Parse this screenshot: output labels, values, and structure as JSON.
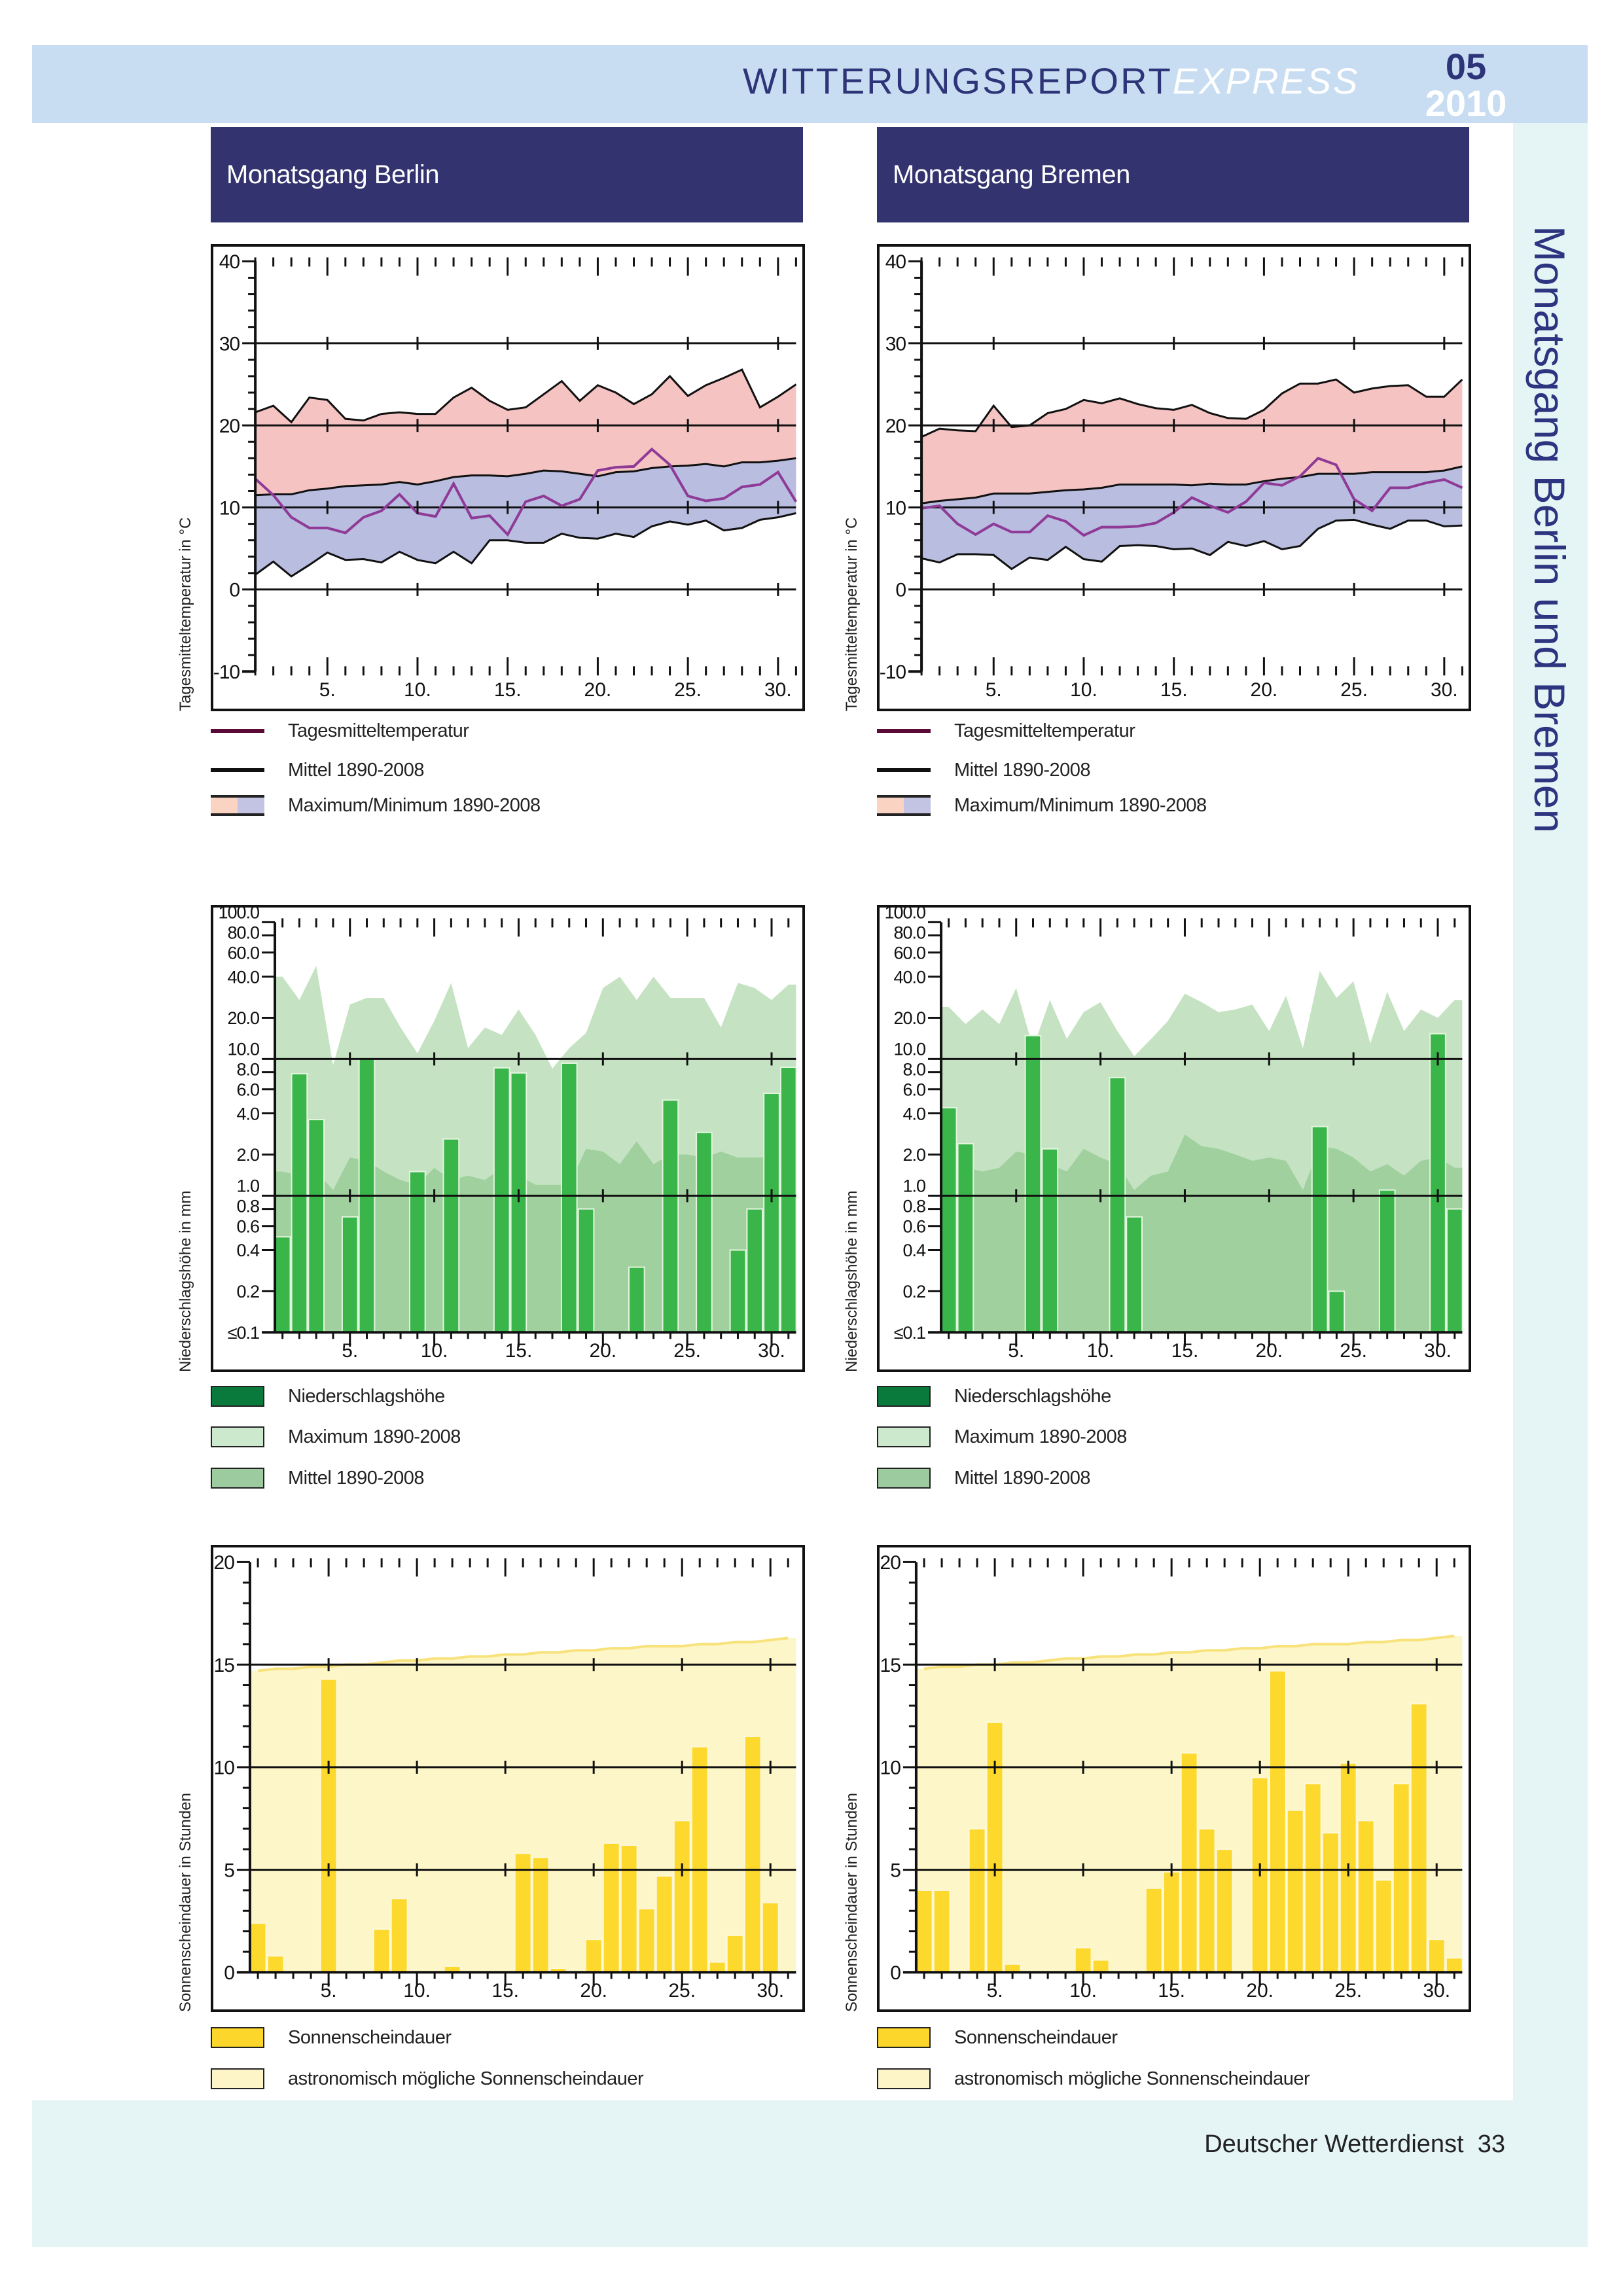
{
  "header": {
    "title_main": "WITTERUNGSREPORT",
    "title_accent": "EXPRESS",
    "issue_month": "05",
    "issue_year": "2010"
  },
  "side_title": "Monatsgang Berlin und Bremen",
  "footer": {
    "publisher": "Deutscher Wetterdienst",
    "page_number": "33"
  },
  "columns": [
    {
      "title": "Monatsgang Berlin"
    },
    {
      "title": "Monatsgang Bremen"
    }
  ],
  "colors": {
    "title_box": "#33336f",
    "header_band": "#c8ddf2",
    "side_band": "#e5f4f5",
    "temp_daily": "#8e3a96",
    "temp_daily_legend": "#5a0a35",
    "temp_max_band": "#f6c3c3",
    "temp_min_band": "#b9bde0",
    "precip_bar": "#39b54a",
    "precip_bar_legend": "#0a7a3c",
    "precip_max": "#c5e3c3",
    "precip_mean": "#9fd09e",
    "sun_bar": "#fcd92c",
    "sun_astro": "#fdf6c8"
  },
  "legends": {
    "temperature": [
      {
        "label": "Tagesmitteltemperatur"
      },
      {
        "label": "Mittel 1890-2008"
      },
      {
        "label": "Maximum/Minimum 1890-2008"
      }
    ],
    "precipitation": [
      {
        "label": "Niederschlagshöhe"
      },
      {
        "label": "Maximum 1890-2008"
      },
      {
        "label": "Mittel 1890-2008"
      }
    ],
    "sunshine": [
      {
        "label": "Sonnenscheindauer"
      },
      {
        "label": "astronomisch mögliche Sonnenscheindauer"
      }
    ]
  },
  "chart_data": [
    {
      "type": "line",
      "station": "Berlin",
      "ylabel": "Tagesmitteltemperatur in °C",
      "xlim": [
        1,
        31
      ],
      "xtick_labels": [
        "5.",
        "10.",
        "15.",
        "20.",
        "25.",
        "30."
      ],
      "ylim": [
        -10,
        40
      ],
      "yticks": [
        -10,
        0,
        10,
        20,
        30,
        40
      ],
      "ytick_labels": [
        "-10",
        "0",
        "10",
        "20",
        "30",
        "40"
      ],
      "grid": [
        0,
        10,
        20,
        30
      ],
      "series": [
        {
          "name": "Tagesmitteltemperatur",
          "values": [
            13.5,
            11.5,
            8.8,
            7.5,
            7.5,
            6.9,
            8.8,
            9.6,
            11.6,
            9.3,
            8.9,
            12.9,
            8.7,
            9.0,
            6.7,
            10.7,
            11.4,
            10.2,
            11.0,
            14.5,
            14.9,
            15.0,
            17.1,
            15.2,
            11.4,
            10.8,
            11.1,
            12.5,
            12.8,
            14.3,
            10.7
          ]
        },
        {
          "name": "Mittel 1890-2008",
          "values": [
            11.5,
            11.6,
            11.6,
            12.1,
            12.3,
            12.6,
            12.7,
            12.8,
            13.1,
            12.8,
            13.2,
            13.7,
            13.9,
            13.9,
            13.8,
            14.1,
            14.5,
            14.4,
            14.1,
            13.8,
            14.3,
            14.4,
            14.8,
            15.0,
            15.1,
            15.3,
            15.0,
            15.5,
            15.5,
            15.7,
            16.0
          ]
        }
      ],
      "band": {
        "name": "Maximum/Minimum 1890-2008",
        "upper": [
          21.6,
          22.4,
          20.4,
          23.4,
          23.1,
          20.8,
          20.6,
          21.4,
          21.6,
          21.4,
          21.4,
          23.4,
          24.6,
          23.0,
          21.9,
          22.2,
          23.8,
          25.4,
          23.0,
          24.9,
          24.0,
          22.6,
          23.8,
          26.0,
          23.6,
          24.9,
          25.8,
          26.8,
          22.2,
          23.5,
          25.0
        ],
        "lower": [
          1.8,
          3.4,
          1.6,
          3.0,
          4.5,
          3.6,
          3.7,
          3.3,
          4.6,
          3.6,
          3.2,
          4.6,
          3.2,
          6.0,
          6.0,
          5.7,
          5.7,
          6.8,
          6.3,
          6.2,
          6.8,
          6.4,
          7.7,
          8.3,
          7.9,
          8.4,
          7.2,
          7.5,
          8.5,
          8.8,
          9.3
        ]
      }
    },
    {
      "type": "line",
      "station": "Bremen",
      "ylabel": "Tagesmitteltemperatur in °C",
      "xlim": [
        1,
        31
      ],
      "xtick_labels": [
        "5.",
        "10.",
        "15.",
        "20.",
        "25.",
        "30."
      ],
      "ylim": [
        -10,
        40
      ],
      "yticks": [
        -10,
        0,
        10,
        20,
        30,
        40
      ],
      "ytick_labels": [
        "-10",
        "0",
        "10",
        "20",
        "30",
        "40"
      ],
      "grid": [
        0,
        10,
        20,
        30
      ],
      "series": [
        {
          "name": "Tagesmitteltemperatur",
          "values": [
            9.9,
            10.2,
            8.0,
            6.7,
            8.0,
            7.0,
            7.0,
            9.0,
            8.3,
            6.6,
            7.6,
            7.6,
            7.7,
            8.1,
            9.4,
            11.2,
            10.2,
            9.4,
            10.7,
            13.0,
            12.7,
            13.8,
            16.0,
            15.2,
            11.0,
            9.6,
            12.4,
            12.4,
            13.0,
            13.4,
            12.4
          ]
        },
        {
          "name": "Mittel 1890-2008",
          "values": [
            10.5,
            10.8,
            11.0,
            11.2,
            11.7,
            11.7,
            11.7,
            11.9,
            12.1,
            12.2,
            12.4,
            12.8,
            12.8,
            12.8,
            12.8,
            12.7,
            12.9,
            12.8,
            12.8,
            13.2,
            13.5,
            13.7,
            14.1,
            14.1,
            14.1,
            14.3,
            14.3,
            14.3,
            14.3,
            14.5,
            15.0
          ]
        }
      ],
      "band": {
        "name": "Maximum/Minimum 1890-2008",
        "upper": [
          18.6,
          19.6,
          19.4,
          19.3,
          22.4,
          19.8,
          20.0,
          21.5,
          22.0,
          23.1,
          22.7,
          23.3,
          22.6,
          22.1,
          21.9,
          22.5,
          21.5,
          20.9,
          20.8,
          21.9,
          23.9,
          25.1,
          25.1,
          25.6,
          24.0,
          24.5,
          24.8,
          24.9,
          23.5,
          23.5,
          25.6
        ],
        "lower": [
          3.8,
          3.3,
          4.3,
          4.3,
          4.2,
          2.5,
          3.9,
          3.6,
          5.2,
          3.7,
          3.4,
          5.3,
          5.4,
          5.3,
          4.9,
          5.0,
          4.2,
          5.8,
          5.3,
          5.9,
          4.9,
          5.3,
          7.4,
          8.4,
          8.5,
          7.9,
          7.4,
          8.4,
          8.4,
          7.7,
          7.8
        ]
      }
    },
    {
      "type": "bar",
      "station": "Berlin",
      "ylabel": "Niederschlagshöhe in mm",
      "scale": "log",
      "xlim": [
        1,
        31
      ],
      "xtick_labels": [
        "5.",
        "10.",
        "15.",
        "20.",
        "25.",
        "30."
      ],
      "ylim": [
        0.1,
        100
      ],
      "yticks": [
        0.1,
        0.2,
        0.4,
        0.6,
        0.8,
        1,
        2,
        4,
        6,
        8,
        10,
        20,
        40,
        60,
        80,
        100
      ],
      "ytick_labels": [
        "≤0.1",
        "0.2",
        "0.4",
        "0.6",
        "0.8",
        "1.0",
        "2.0",
        "4.0",
        "6.0",
        "8.0",
        "10.0",
        "20.0",
        "40.0",
        "60.0",
        "80.0",
        "100.0"
      ],
      "grid": [
        1,
        10
      ],
      "series": [
        {
          "name": "Niederschlagshöhe",
          "values": [
            0.5,
            7.8,
            3.6,
            0,
            0.7,
            10.0,
            0,
            0,
            1.5,
            0,
            2.6,
            0,
            0,
            8.6,
            7.9,
            0,
            0,
            9.3,
            0.8,
            0,
            0,
            0.3,
            0,
            5.0,
            0,
            2.9,
            0,
            0.4,
            0.8,
            5.6,
            8.7
          ]
        },
        {
          "name": "Maximum 1890-2008",
          "values": [
            40,
            27,
            48,
            9,
            25,
            28,
            28,
            17,
            11,
            19,
            36,
            12,
            17,
            15,
            23,
            15,
            8.5,
            12,
            15.5,
            33,
            40,
            27,
            40,
            28,
            28,
            28,
            17,
            36,
            33,
            27,
            35
          ]
        },
        {
          "name": "Mittel 1890-2008",
          "values": [
            1.5,
            1.4,
            1.5,
            1.1,
            1.9,
            1.8,
            1.5,
            1.3,
            1.2,
            1.6,
            1.3,
            1.4,
            1.3,
            1.6,
            1.4,
            1.2,
            1.2,
            1.2,
            2.2,
            2.1,
            1.7,
            2.5,
            1.7,
            2.0,
            2.0,
            1.9,
            2.1,
            1.9,
            1.9,
            1.9,
            1.3
          ]
        }
      ]
    },
    {
      "type": "bar",
      "station": "Bremen",
      "ylabel": "Niederschlagshöhe in mm",
      "scale": "log",
      "xlim": [
        1,
        31
      ],
      "xtick_labels": [
        "5.",
        "10.",
        "15.",
        "20.",
        "25.",
        "30."
      ],
      "ylim": [
        0.1,
        100
      ],
      "yticks": [
        0.1,
        0.2,
        0.4,
        0.6,
        0.8,
        1,
        2,
        4,
        6,
        8,
        10,
        20,
        40,
        60,
        80,
        100
      ],
      "ytick_labels": [
        "≤0.1",
        "0.2",
        "0.4",
        "0.6",
        "0.8",
        "1.0",
        "2.0",
        "4.0",
        "6.0",
        "8.0",
        "10.0",
        "20.0",
        "40.0",
        "60.0",
        "80.0",
        "100.0"
      ],
      "grid": [
        1,
        10
      ],
      "series": [
        {
          "name": "Niederschlagshöhe",
          "values": [
            4.4,
            2.4,
            0,
            0,
            0,
            14.8,
            2.2,
            0,
            0,
            0,
            7.3,
            0.7,
            0,
            0,
            0,
            0,
            0,
            0,
            0,
            0,
            0,
            0,
            3.2,
            0.2,
            0,
            0,
            1.1,
            0,
            0,
            15.3,
            0.8
          ]
        },
        {
          "name": "Maximum 1890-2008",
          "values": [
            24,
            18,
            23,
            18,
            33,
            12,
            27,
            14,
            22,
            26,
            16,
            10.5,
            14,
            19,
            30,
            26,
            22,
            23,
            25,
            16,
            29,
            12,
            44,
            28,
            37,
            13,
            31,
            16,
            23,
            20,
            27
          ]
        },
        {
          "name": "Mittel 1890-2008",
          "values": [
            1.4,
            1.6,
            1.5,
            1.6,
            2.1,
            2.0,
            1.7,
            1.5,
            2.2,
            1.9,
            1.7,
            1.1,
            1.4,
            1.5,
            2.8,
            2.3,
            2.2,
            2.0,
            1.8,
            1.9,
            1.8,
            1.1,
            2.3,
            2.2,
            1.9,
            1.5,
            1.7,
            1.4,
            1.8,
            1.9,
            1.6
          ]
        }
      ]
    },
    {
      "type": "bar",
      "station": "Berlin",
      "ylabel": "Sonnenscheindauer in Stunden",
      "xlim": [
        1,
        31
      ],
      "xtick_labels": [
        "5.",
        "10.",
        "15.",
        "20.",
        "25.",
        "30."
      ],
      "ylim": [
        0,
        20
      ],
      "yticks": [
        0,
        5,
        10,
        15,
        20
      ],
      "ytick_labels": [
        "0",
        "5",
        "10",
        "15",
        "20"
      ],
      "grid": [
        5,
        10,
        15
      ],
      "series": [
        {
          "name": "Sonnenscheindauer",
          "values": [
            2.4,
            0.8,
            0,
            0,
            14.3,
            0,
            0,
            2.1,
            3.6,
            0,
            0,
            0.3,
            0,
            0,
            0,
            5.8,
            5.6,
            0.2,
            0,
            1.6,
            6.3,
            6.2,
            3.1,
            4.7,
            7.4,
            11.0,
            0.5,
            1.8,
            11.5,
            3.4,
            0
          ]
        },
        {
          "name": "astronomisch mögliche Sonnenscheindauer",
          "values": [
            14.7,
            14.8,
            14.8,
            14.9,
            14.9,
            15.0,
            15.0,
            15.1,
            15.2,
            15.2,
            15.3,
            15.3,
            15.4,
            15.4,
            15.5,
            15.5,
            15.6,
            15.6,
            15.7,
            15.7,
            15.8,
            15.8,
            15.9,
            15.9,
            15.9,
            16.0,
            16.0,
            16.1,
            16.1,
            16.2,
            16.3
          ]
        }
      ]
    },
    {
      "type": "bar",
      "station": "Bremen",
      "ylabel": "Sonnenscheindauer in Stunden",
      "xlim": [
        1,
        31
      ],
      "xtick_labels": [
        "5.",
        "10.",
        "15.",
        "20.",
        "25.",
        "30."
      ],
      "ylim": [
        0,
        20
      ],
      "yticks": [
        0,
        5,
        10,
        15,
        20
      ],
      "ytick_labels": [
        "0",
        "5",
        "10",
        "15",
        "20"
      ],
      "grid": [
        5,
        10,
        15
      ],
      "series": [
        {
          "name": "Sonnenscheindauer",
          "values": [
            4.0,
            4.0,
            0,
            7.0,
            12.2,
            0.4,
            0,
            0,
            0,
            1.2,
            0.6,
            0,
            0,
            4.1,
            4.9,
            10.7,
            7.0,
            6.0,
            0,
            9.5,
            14.7,
            7.9,
            9.2,
            6.8,
            10.2,
            7.4,
            4.5,
            9.2,
            13.1,
            1.6,
            0.7
          ]
        },
        {
          "name": "astronomisch mögliche Sonnenscheindauer",
          "values": [
            14.8,
            14.9,
            14.9,
            15.0,
            15.0,
            15.1,
            15.1,
            15.2,
            15.3,
            15.3,
            15.4,
            15.4,
            15.5,
            15.5,
            15.6,
            15.6,
            15.7,
            15.7,
            15.8,
            15.8,
            15.9,
            15.9,
            16.0,
            16.0,
            16.0,
            16.1,
            16.1,
            16.2,
            16.2,
            16.3,
            16.4
          ]
        }
      ]
    }
  ]
}
